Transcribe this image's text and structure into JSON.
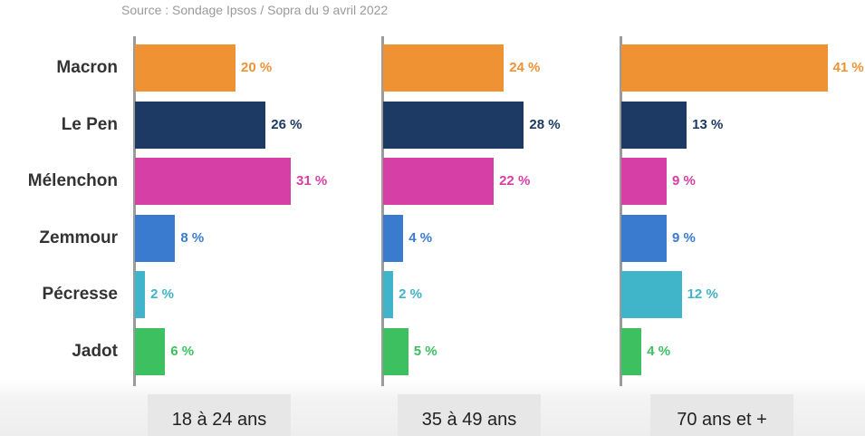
{
  "source": "Source : Sondage Ipsos / Sopra du 9 avril 2022",
  "chart_data": {
    "type": "bar",
    "orientation": "horizontal",
    "categories": [
      "Macron",
      "Le Pen",
      "Mélenchon",
      "Zemmour",
      "Pécresse",
      "Jadot"
    ],
    "colors": [
      "#ef9234",
      "#1c3a64",
      "#d63fa6",
      "#3a7bd0",
      "#40b4c9",
      "#3dc060"
    ],
    "unit": "%",
    "groups": [
      {
        "label": "18 à 24 ans",
        "values": [
          20,
          26,
          31,
          8,
          2,
          6
        ],
        "value_labels": [
          "20 %",
          "26 %",
          "31 %",
          "8 %",
          "2 %",
          "6 %"
        ]
      },
      {
        "label": "35 à 49 ans",
        "values": [
          24,
          28,
          22,
          4,
          2,
          5
        ],
        "value_labels": [
          "24 %",
          "28 %",
          "22 %",
          "4 %",
          "2 %",
          "5 %"
        ]
      },
      {
        "label": "70 ans et +",
        "values": [
          41,
          13,
          9,
          9,
          12,
          4
        ],
        "value_labels": [
          "41 %",
          "13 %",
          "9 %",
          "9 %",
          "12 %",
          "4 %"
        ]
      }
    ],
    "grid": false,
    "legend": "none"
  }
}
